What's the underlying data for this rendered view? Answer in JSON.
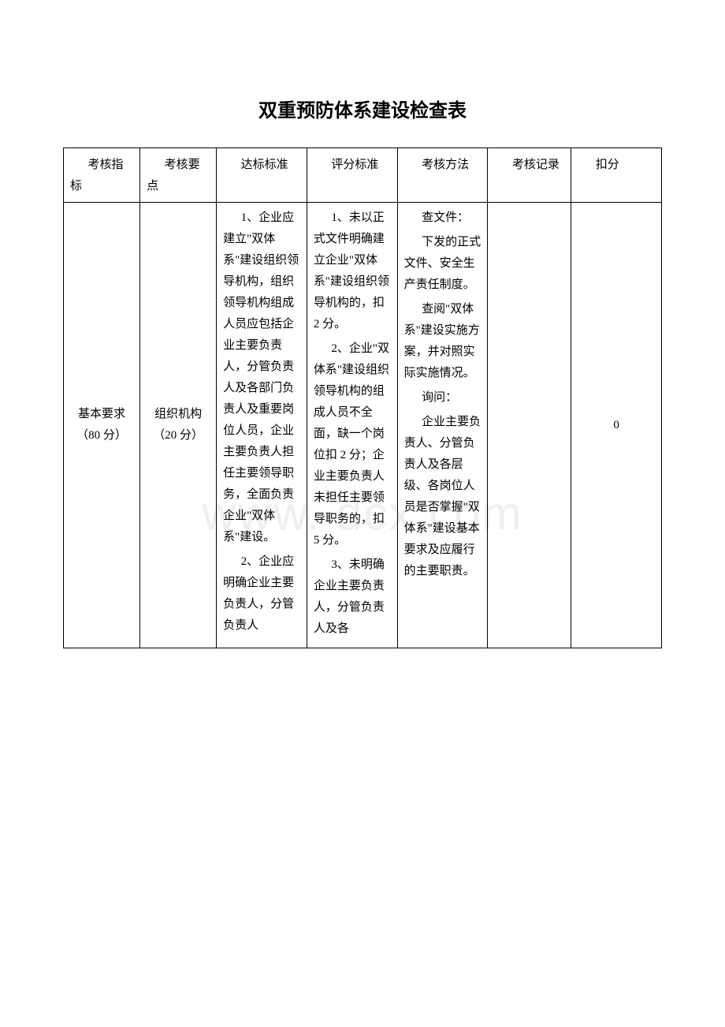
{
  "page": {
    "title": "双重预防体系建设检查表",
    "watermark": "www.     dcx.com",
    "background": "#ffffff",
    "text_color": "#000000",
    "border_color": "#000000",
    "title_fontsize": 24,
    "cell_fontsize": 15
  },
  "table": {
    "columns": [
      {
        "key": "考核指标",
        "label": "考核指标",
        "width_pct": 11
      },
      {
        "key": "考核要点",
        "label": "考核要点",
        "width_pct": 11
      },
      {
        "key": "达标标准",
        "label": "达标标准",
        "width_pct": 13
      },
      {
        "key": "评分标准",
        "label": "评分标准",
        "width_pct": 13
      },
      {
        "key": "考核方法",
        "label": "考核方法",
        "width_pct": 13
      },
      {
        "key": "考核记录",
        "label": "考核记录",
        "width_pct": 12
      },
      {
        "key": "扣分",
        "label": "扣分",
        "width_pct": 13
      }
    ],
    "row": {
      "c1": "基本要求（80 分）",
      "c2": "组织机构\n（20 分）",
      "c3": [
        "1、企业应建立\"双体系\"建设组织领导机构，组织领导机构组成人员应包括企业主要负责人，分管负责人及各部门负责人及重要岗位人员，企业主要负责人担任主要领导职务，全面负责企业\"双体系\"建设。",
        "2、企业应明确企业主要负责人，分管负责人"
      ],
      "c4": [
        "1、未以正式文件明确建立企业\"双体系\"建设组织领导机构的，扣 2 分。",
        "2、企业\"双体系\"建设组织领导机构的组成人员不全面，缺一个岗位扣 2 分；企业主要负责人未担任主要领导职务的，扣 5 分。",
        "3、未明确企业主要负责人，分管负责人及各"
      ],
      "c5": [
        "查文件：",
        "下发的正式文件、安全生产责任制度。",
        "查阅\"双体系\"建设实施方案，并对照实际实施情况。",
        "询问：",
        "企业主要负责人、分管负责人及各层级、各岗位人员是否掌握\"双体系\"建设基本要求及应履行的主要职责。"
      ],
      "c6": "",
      "c7": "0"
    }
  }
}
